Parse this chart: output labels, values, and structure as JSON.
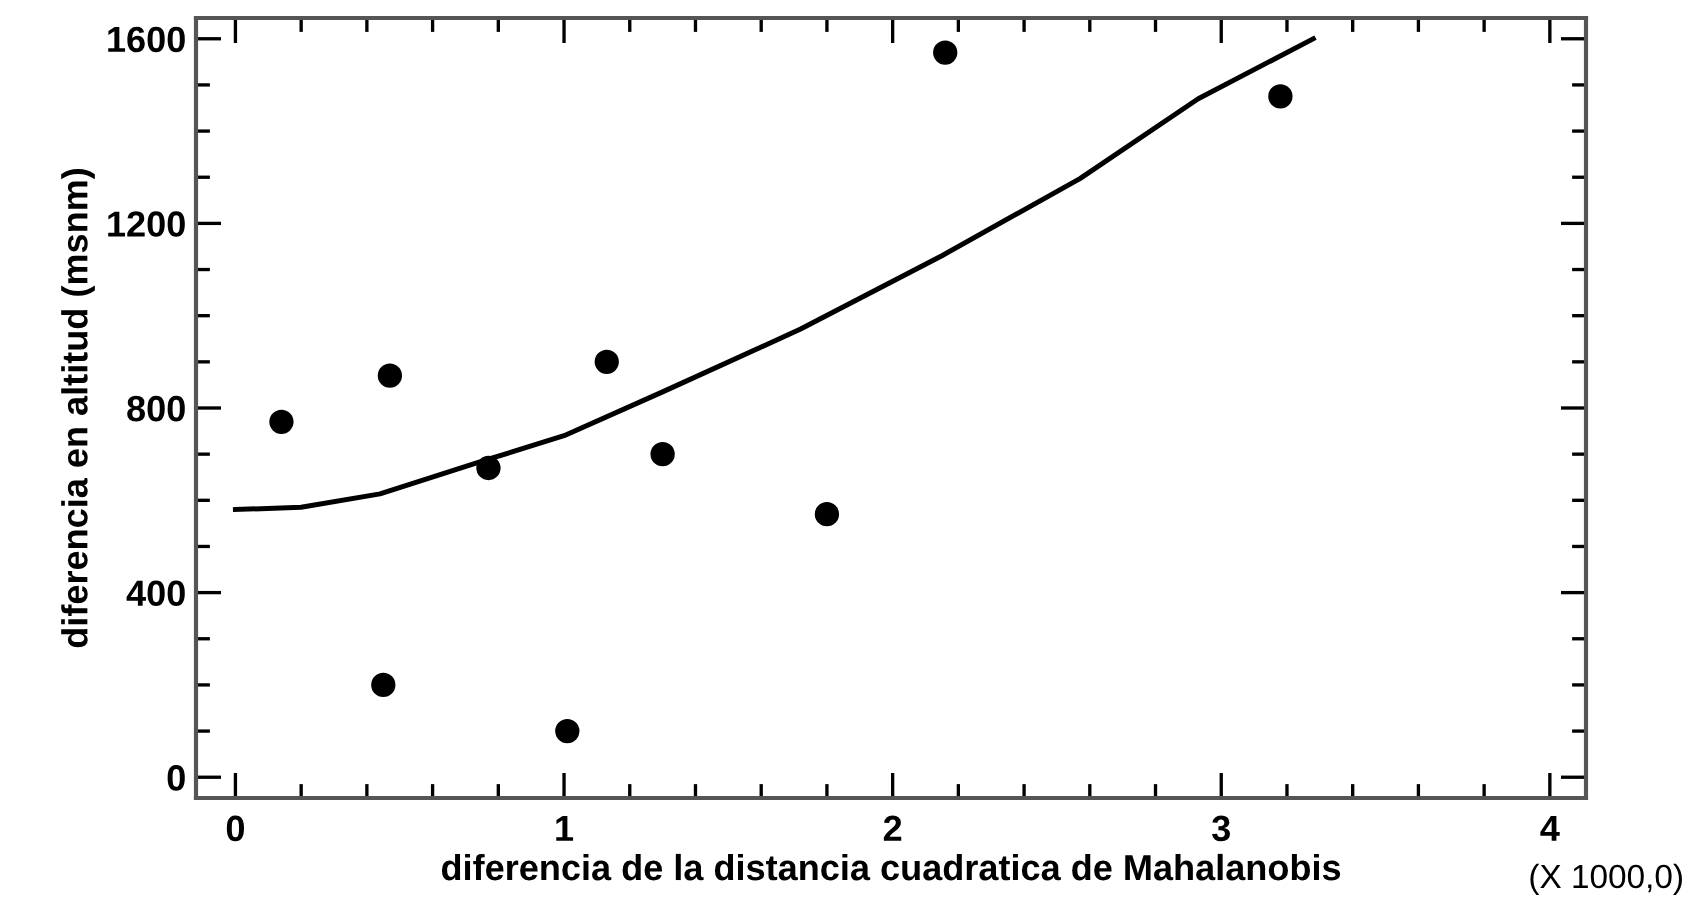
{
  "chart_data": {
    "type": "scatter",
    "xlabel": "diferencia de la distancia cuadratica de Mahalanobis",
    "ylabel": "diferencia en altitud (msnm)",
    "annotations": [
      "(X 1000,0)"
    ],
    "series": [
      {
        "color": "#000000",
        "marker": "circle",
        "x": [
          0.14,
          0.45,
          0.47,
          0.77,
          1.01,
          1.13,
          1.3,
          1.8,
          2.16,
          3.18
        ],
        "values": [
          770,
          200,
          870,
          670,
          100,
          900,
          700,
          570,
          1570,
          1475
        ]
      },
      {
        "type": "line",
        "color": "#000000",
        "line_style": "solid",
        "marker": "none",
        "x": [
          0,
          0.2,
          0.44,
          0.77,
          1.0,
          1.3,
          1.72,
          2.15,
          2.57,
          2.93,
          3.28
        ],
        "values": [
          580,
          585,
          614,
          689,
          740,
          835,
          971,
          1130,
          1297,
          1470,
          1600
        ]
      }
    ],
    "xlim": [
      -0.12,
      4.11
    ],
    "ylim": [
      -45,
      1645
    ],
    "xticks": [
      0,
      {
        "value": 0.2,
        "label": null
      },
      {
        "value": 0.4,
        "label": null
      },
      {
        "value": 0.6,
        "label": null
      },
      {
        "value": 0.8,
        "label": null
      },
      1,
      {
        "value": 1.2,
        "label": null
      },
      {
        "value": 1.4,
        "label": null
      },
      {
        "value": 1.6,
        "label": null
      },
      {
        "value": 1.8,
        "label": null
      },
      2,
      {
        "value": 2.2,
        "label": null
      },
      {
        "value": 2.4,
        "label": null
      },
      {
        "value": 2.6,
        "label": null
      },
      {
        "value": 2.8,
        "label": null
      },
      3,
      {
        "value": 3.2,
        "label": null
      },
      {
        "value": 3.4,
        "label": null
      },
      {
        "value": 3.6,
        "label": null
      },
      {
        "value": 3.8,
        "label": null
      },
      4
    ],
    "yticks": [
      0,
      {
        "value": 100,
        "label": null
      },
      {
        "value": 200,
        "label": null
      },
      {
        "value": 300,
        "label": null
      },
      400,
      {
        "value": 500,
        "label": null
      },
      {
        "value": 600,
        "label": null
      },
      {
        "value": 700,
        "label": null
      },
      800,
      {
        "value": 900,
        "label": null
      },
      {
        "value": 1000,
        "label": null
      },
      {
        "value": 1100,
        "label": null
      },
      1200,
      {
        "value": 1300,
        "label": null
      },
      {
        "value": 1400,
        "label": null
      },
      {
        "value": 1500,
        "label": null
      },
      1600
    ],
    "grid": false,
    "legend": false
  }
}
